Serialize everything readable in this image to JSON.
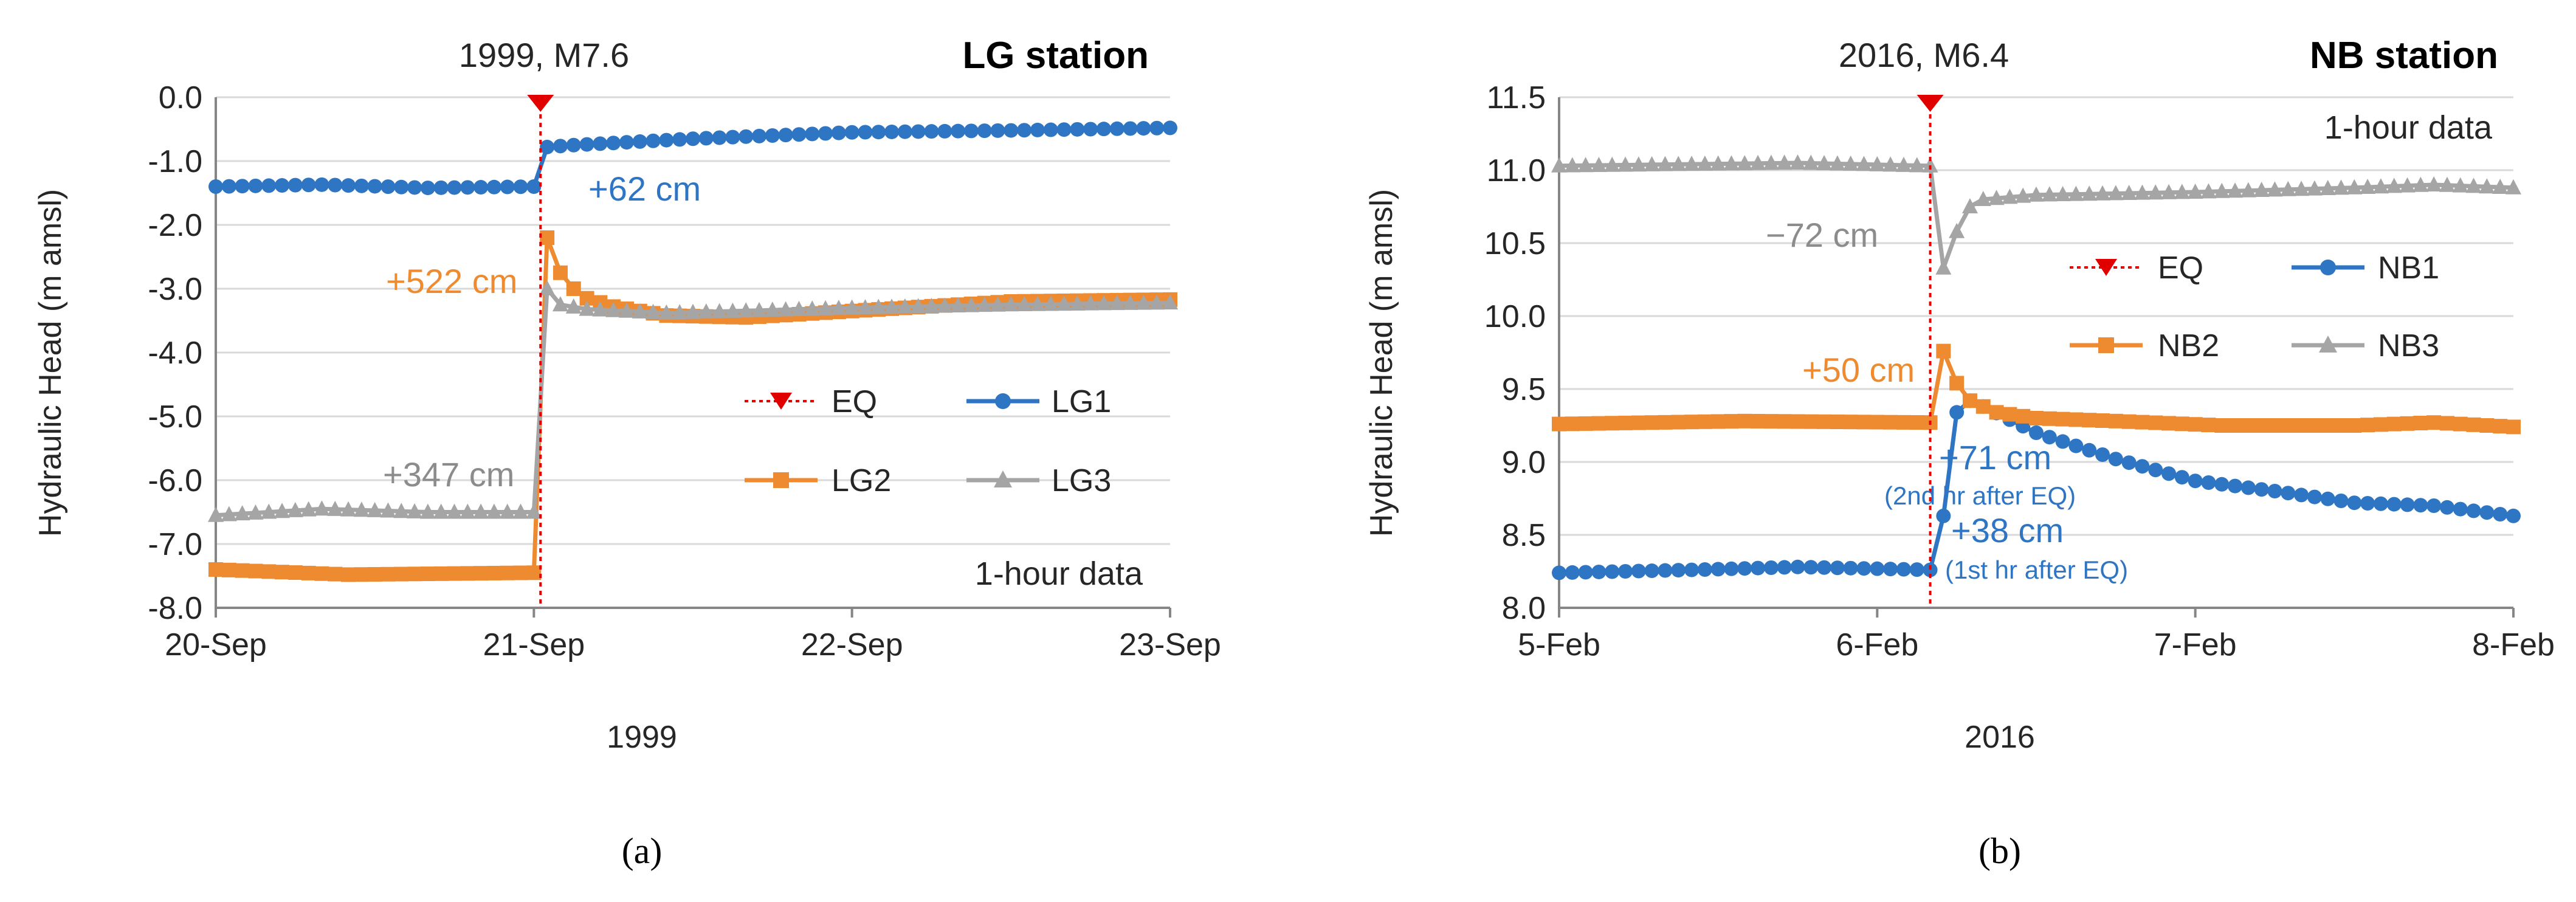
{
  "chart_data": [
    {
      "type": "line",
      "panel_label": "(a)",
      "title": "LG station",
      "event_label": "1999, M7.6",
      "xlabel": "1999",
      "ylabel": "Hydraulic Head (m amsl)",
      "ylim": [
        -8.0,
        0.0
      ],
      "ytick_step": 1.0,
      "ytick_labels": [
        "-8.0",
        "-7.0",
        "-6.0",
        "-5.0",
        "-4.0",
        "-3.0",
        "-2.0",
        "-1.0",
        "0.0"
      ],
      "xlim_hours": [
        0,
        72
      ],
      "xtick_labels": [
        "20-Sep",
        "21-Sep",
        "22-Sep",
        "23-Sep"
      ],
      "eq_hour": 24.5,
      "data_note": "1-hour data",
      "legend": [
        "EQ",
        "LG1",
        "LG2",
        "LG3"
      ],
      "series": [
        {
          "name": "LG1",
          "color": "#2e75c3",
          "marker": "circle",
          "keyframes": [
            [
              0,
              -1.4
            ],
            [
              8,
              -1.37
            ],
            [
              16,
              -1.42
            ],
            [
              24,
              -1.4
            ],
            [
              25,
              -0.78
            ],
            [
              27,
              -0.75
            ],
            [
              36,
              -0.65
            ],
            [
              48,
              -0.55
            ],
            [
              60,
              -0.52
            ],
            [
              72,
              -0.48
            ]
          ]
        },
        {
          "name": "LG2",
          "color": "#ee8a30",
          "marker": "square",
          "keyframes": [
            [
              0,
              -7.4
            ],
            [
              10,
              -7.48
            ],
            [
              24,
              -7.45
            ],
            [
              25,
              -2.2
            ],
            [
              26,
              -2.75
            ],
            [
              27,
              -3.0
            ],
            [
              28,
              -3.15
            ],
            [
              30,
              -3.28
            ],
            [
              34,
              -3.42
            ],
            [
              40,
              -3.45
            ],
            [
              48,
              -3.35
            ],
            [
              60,
              -3.2
            ],
            [
              72,
              -3.17
            ]
          ]
        },
        {
          "name": "LG3",
          "color": "#a5a5a5",
          "marker": "triangle",
          "keyframes": [
            [
              0,
              -6.55
            ],
            [
              8,
              -6.45
            ],
            [
              16,
              -6.5
            ],
            [
              24,
              -6.5
            ],
            [
              25,
              -3.0
            ],
            [
              26,
              -3.25
            ],
            [
              28,
              -3.32
            ],
            [
              34,
              -3.38
            ],
            [
              48,
              -3.3
            ],
            [
              60,
              -3.25
            ],
            [
              72,
              -3.22
            ]
          ]
        }
      ],
      "annotations": [
        {
          "text": "+62 cm",
          "series": "LG1"
        },
        {
          "text": "+522 cm",
          "series": "LG2"
        },
        {
          "text": "+347 cm",
          "series": "LG3"
        }
      ]
    },
    {
      "type": "line",
      "panel_label": "(b)",
      "title": "NB station",
      "event_label": "2016, M6.4",
      "xlabel": "2016",
      "ylabel": "Hydraulic Head (m amsl)",
      "ylim": [
        8.0,
        11.5
      ],
      "ytick_step": 0.5,
      "ytick_labels": [
        "8.0",
        "8.5",
        "9.0",
        "9.5",
        "10.0",
        "10.5",
        "11.0",
        "11.5"
      ],
      "xlim_hours": [
        0,
        72
      ],
      "xtick_labels": [
        "5-Feb",
        "6-Feb",
        "7-Feb",
        "8-Feb"
      ],
      "eq_hour": 28,
      "data_note": "1-hour data",
      "legend": [
        "EQ",
        "NB1",
        "NB2",
        "NB3"
      ],
      "series": [
        {
          "name": "NB1",
          "color": "#2e75c3",
          "marker": "circle",
          "keyframes": [
            [
              0,
              8.24
            ],
            [
              10,
              8.26
            ],
            [
              18,
              8.28
            ],
            [
              28,
              8.26
            ],
            [
              29,
              8.63
            ],
            [
              30,
              9.34
            ],
            [
              31,
              9.42
            ],
            [
              32,
              9.38
            ],
            [
              36,
              9.2
            ],
            [
              42,
              9.02
            ],
            [
              48,
              8.87
            ],
            [
              54,
              8.8
            ],
            [
              60,
              8.72
            ],
            [
              66,
              8.7
            ],
            [
              72,
              8.63
            ]
          ]
        },
        {
          "name": "NB2",
          "color": "#ee8a30",
          "marker": "square",
          "keyframes": [
            [
              0,
              9.26
            ],
            [
              14,
              9.28
            ],
            [
              28,
              9.27
            ],
            [
              29,
              9.76
            ],
            [
              30,
              9.54
            ],
            [
              31,
              9.42
            ],
            [
              33,
              9.34
            ],
            [
              36,
              9.3
            ],
            [
              42,
              9.28
            ],
            [
              50,
              9.25
            ],
            [
              60,
              9.25
            ],
            [
              66,
              9.27
            ],
            [
              72,
              9.24
            ]
          ]
        },
        {
          "name": "NB3",
          "color": "#a5a5a5",
          "marker": "triangle",
          "keyframes": [
            [
              0,
              11.03
            ],
            [
              18,
              11.05
            ],
            [
              28,
              11.03
            ],
            [
              29,
              10.33
            ],
            [
              30,
              10.58
            ],
            [
              31,
              10.75
            ],
            [
              32,
              10.8
            ],
            [
              36,
              10.83
            ],
            [
              48,
              10.85
            ],
            [
              60,
              10.88
            ],
            [
              66,
              10.9
            ],
            [
              72,
              10.88
            ]
          ]
        }
      ],
      "annotations": [
        {
          "text": "−72 cm",
          "series": "NB3"
        },
        {
          "text": "+50 cm",
          "series": "NB2"
        },
        {
          "text": "+71 cm",
          "series": "NB1"
        },
        {
          "text": "(2nd hr after EQ)",
          "series": "NB1"
        },
        {
          "text": "+38 cm",
          "series": "NB1"
        },
        {
          "text": "(1st hr after EQ)",
          "series": "NB1"
        }
      ]
    }
  ],
  "colors": {
    "eq": "#e00000",
    "grid": "#d9d9d9",
    "axis": "#868686",
    "text": "#262626",
    "lg1": "#2e75c3",
    "lg2": "#ee8a30",
    "lg3": "#a5a5a5"
  }
}
